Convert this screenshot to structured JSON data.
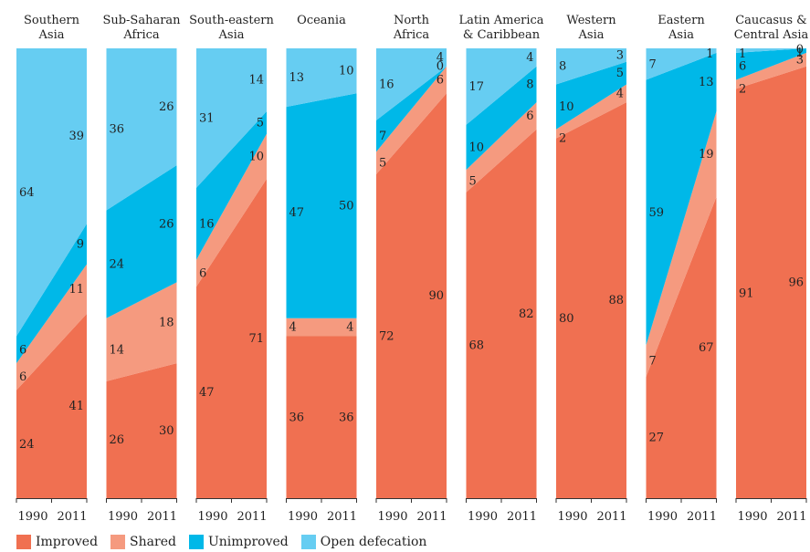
{
  "chart_data": {
    "type": "area",
    "title": "",
    "x_labels": [
      "1990",
      "2011"
    ],
    "ylim": [
      0,
      100
    ],
    "colors": {
      "Improved": "#f07051",
      "Shared": "#f59a7f",
      "Unimproved": "#00b8e8",
      "Open defecation": "#66cdf2"
    },
    "series_names": [
      "Improved",
      "Shared",
      "Unimproved",
      "Open defecation"
    ],
    "panels": [
      {
        "title": [
          "Southern",
          "Asia"
        ],
        "improved": [
          24,
          41
        ],
        "shared": [
          6,
          11
        ],
        "unimproved": [
          6,
          9
        ],
        "open_defecation": [
          64,
          39
        ]
      },
      {
        "title": [
          "Sub-Saharan",
          "Africa"
        ],
        "improved": [
          26,
          30
        ],
        "shared": [
          14,
          18
        ],
        "unimproved": [
          24,
          26
        ],
        "open_defecation": [
          36,
          26
        ]
      },
      {
        "title": [
          "South-eastern",
          "Asia"
        ],
        "improved": [
          47,
          71
        ],
        "shared": [
          6,
          10
        ],
        "unimproved": [
          16,
          5
        ],
        "open_defecation": [
          31,
          14
        ]
      },
      {
        "title": [
          "Oceania",
          ""
        ],
        "improved": [
          36,
          36
        ],
        "shared": [
          4,
          4
        ],
        "unimproved": [
          47,
          50
        ],
        "open_defecation": [
          13,
          10
        ]
      },
      {
        "title": [
          "North",
          "Africa"
        ],
        "improved": [
          72,
          90
        ],
        "shared": [
          5,
          6
        ],
        "unimproved": [
          7,
          0
        ],
        "open_defecation": [
          16,
          4
        ]
      },
      {
        "title": [
          "Latin America",
          "& Caribbean"
        ],
        "improved": [
          68,
          82
        ],
        "shared": [
          5,
          6
        ],
        "unimproved": [
          10,
          8
        ],
        "open_defecation": [
          17,
          4
        ]
      },
      {
        "title": [
          "Western",
          "Asia"
        ],
        "improved": [
          80,
          88
        ],
        "shared": [
          2,
          4
        ],
        "unimproved": [
          10,
          5
        ],
        "open_defecation": [
          8,
          3
        ]
      },
      {
        "title": [
          "Eastern",
          "Asia"
        ],
        "improved": [
          27,
          67
        ],
        "shared": [
          7,
          19
        ],
        "unimproved": [
          59,
          13
        ],
        "open_defecation": [
          7,
          1
        ]
      },
      {
        "title": [
          "Caucasus &",
          "Central Asia"
        ],
        "improved": [
          91,
          96
        ],
        "shared": [
          2,
          3
        ],
        "unimproved": [
          6,
          1
        ],
        "open_defecation": [
          1,
          0
        ]
      }
    ]
  },
  "legend": {
    "improved": "Improved",
    "shared": "Shared",
    "unimproved": "Unimproved",
    "open_defecation": "Open defecation"
  }
}
